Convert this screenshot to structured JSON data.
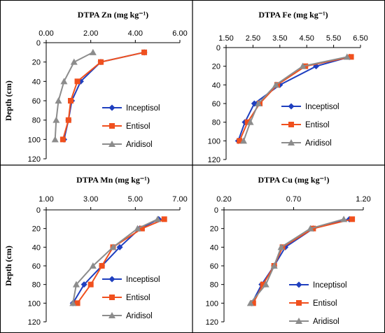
{
  "colors": {
    "Inceptisol": "#1f3fbf",
    "Entisol": "#f0501e",
    "Aridisol": "#8c8c8c",
    "frame": "#000000"
  },
  "chart_data": [
    {
      "type": "line",
      "title": "DTPA Zn (mg kg⁻¹)",
      "xlabel": "",
      "ylabel": "Depth (cm)",
      "xlim": [
        0,
        6
      ],
      "ylim": [
        0,
        120
      ],
      "y_inverted": true,
      "x_ticks": [
        "0.00",
        "2.00",
        "4.00",
        "6.00"
      ],
      "y_ticks": [
        "0",
        "20",
        "40",
        "60",
        "80",
        "100",
        "120"
      ],
      "legend_position": "bottom-right",
      "depth": [
        10,
        20,
        40,
        60,
        80,
        100
      ],
      "series": [
        {
          "name": "Inceptisol",
          "marker": "diamond",
          "values": [
            4.4,
            2.45,
            1.55,
            1.15,
            1.0,
            0.8
          ]
        },
        {
          "name": "Entisol",
          "marker": "square",
          "values": [
            4.4,
            2.45,
            1.4,
            1.1,
            1.0,
            0.75
          ]
        },
        {
          "name": "Aridisol",
          "marker": "triangle",
          "values": [
            2.1,
            1.25,
            0.8,
            0.55,
            0.45,
            0.4
          ]
        }
      ]
    },
    {
      "type": "line",
      "title": "DTPA Fe (mg kg⁻¹)",
      "xlabel": "",
      "ylabel": "",
      "xlim": [
        1.5,
        6.5
      ],
      "ylim": [
        0,
        120
      ],
      "y_inverted": true,
      "x_ticks": [
        "1.50",
        "2.50",
        "3.50",
        "4.50",
        "5.50",
        "6.50"
      ],
      "y_ticks": [
        "0",
        "20",
        "40",
        "60",
        "80",
        "100",
        "120"
      ],
      "legend_position": "bottom-right",
      "depth": [
        10,
        20,
        40,
        60,
        80,
        100
      ],
      "series": [
        {
          "name": "Inceptisol",
          "marker": "diamond",
          "values": [
            6.1,
            4.85,
            3.5,
            2.55,
            2.2,
            1.95
          ]
        },
        {
          "name": "Entisol",
          "marker": "square",
          "values": [
            6.15,
            4.45,
            3.4,
            2.75,
            2.3,
            2.0
          ]
        },
        {
          "name": "Aridisol",
          "marker": "triangle",
          "values": [
            6.0,
            4.35,
            3.35,
            2.7,
            2.4,
            2.15
          ]
        }
      ]
    },
    {
      "type": "line",
      "title": "DTPA Mn (mg kg⁻¹)",
      "xlabel": "",
      "ylabel": "Depth (cm)",
      "xlim": [
        1,
        7
      ],
      "ylim": [
        0,
        120
      ],
      "y_inverted": true,
      "x_ticks": [
        "1.00",
        "3.00",
        "5.00",
        "7.00"
      ],
      "y_ticks": [
        "0",
        "20",
        "40",
        "60",
        "80",
        "100",
        "120"
      ],
      "legend_position": "bottom-right",
      "depth": [
        10,
        20,
        40,
        60,
        80,
        100
      ],
      "series": [
        {
          "name": "Inceptisol",
          "marker": "diamond",
          "values": [
            6.05,
            5.2,
            4.3,
            3.5,
            2.7,
            2.2
          ]
        },
        {
          "name": "Entisol",
          "marker": "square",
          "values": [
            6.3,
            5.3,
            4.0,
            3.5,
            3.0,
            2.4
          ]
        },
        {
          "name": "Aridisol",
          "marker": "triangle",
          "values": [
            6.0,
            5.1,
            4.0,
            3.1,
            2.35,
            2.2
          ]
        }
      ]
    },
    {
      "type": "line",
      "title": "DTPA Cu (mg kg⁻¹)",
      "xlabel": "",
      "ylabel": "",
      "xlim": [
        0.2,
        1.2
      ],
      "ylim": [
        0,
        120
      ],
      "y_inverted": true,
      "x_ticks": [
        "0.20",
        "0.70",
        "1.20"
      ],
      "y_ticks": [
        "0",
        "20",
        "40",
        "60",
        "80",
        "100",
        "120"
      ],
      "legend_position": "bottom-right",
      "depth": [
        10,
        20,
        40,
        60,
        80,
        100
      ],
      "series": [
        {
          "name": "Inceptisol",
          "marker": "diamond",
          "values": [
            1.1,
            0.84,
            0.64,
            0.56,
            0.47,
            0.4
          ]
        },
        {
          "name": "Entisol",
          "marker": "square",
          "values": [
            1.12,
            0.84,
            0.62,
            0.56,
            0.48,
            0.41
          ]
        },
        {
          "name": "Aridisol",
          "marker": "triangle",
          "values": [
            1.06,
            0.82,
            0.61,
            0.56,
            0.5,
            0.39
          ]
        }
      ]
    }
  ]
}
